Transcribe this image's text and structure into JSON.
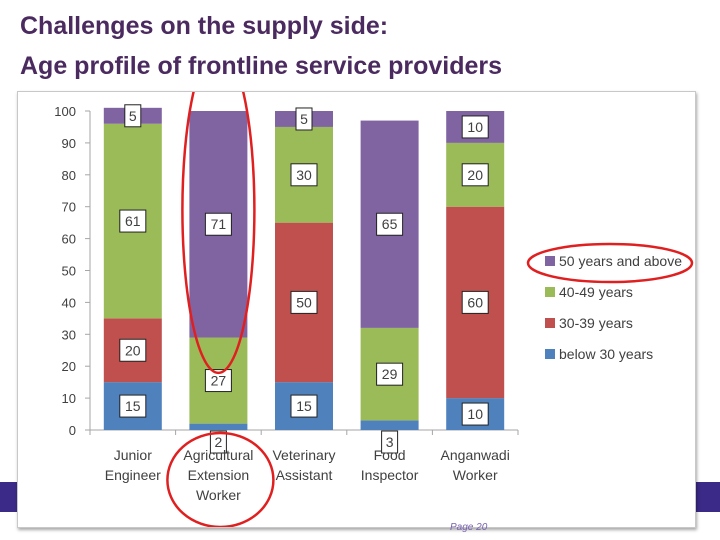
{
  "slide": {
    "title_line1": "Challenges on the supply side:",
    "title_line2": "Age profile of frontline service providers",
    "page_label": "Page 20"
  },
  "colors": {
    "below 30 years": "#4f81bd",
    "30-39 years": "#c0504d",
    "40-49 years": "#9bbb59",
    "50 years and above": "#8064a2",
    "title": "#4b2a5f",
    "highlight_circle": "#e02020"
  },
  "chart_data": {
    "type": "bar",
    "stacked": true,
    "categories": [
      [
        "Junior",
        "Engineer"
      ],
      [
        "Agricultural",
        "Extension",
        "Worker"
      ],
      [
        "Veterinary",
        "Assistant"
      ],
      [
        "Food",
        "Inspector"
      ],
      [
        "Anganwadi",
        "Worker"
      ]
    ],
    "series": [
      {
        "name": "below 30 years",
        "values": [
          15,
          2,
          15,
          3,
          10
        ],
        "color_key": "below 30 years"
      },
      {
        "name": "30-39  years",
        "values": [
          20,
          0,
          50,
          0,
          60
        ],
        "color_key": "30-39 years"
      },
      {
        "name": "40-49 years",
        "values": [
          61,
          27,
          30,
          29,
          20
        ],
        "color_key": "40-49 years"
      },
      {
        "name": "50 years and above",
        "values": [
          5,
          71,
          5,
          65,
          10
        ],
        "color_key": "50 years and above"
      }
    ],
    "data_labels": [
      [
        "15",
        "20",
        "61",
        "5"
      ],
      [
        "2",
        "",
        "27",
        "71"
      ],
      [
        "15",
        "50",
        "30",
        "5"
      ],
      [
        "3",
        "",
        "29",
        "65"
      ],
      [
        "10",
        "60",
        "20",
        "10"
      ]
    ],
    "legend_order": [
      "50 years and above",
      "40-49 years",
      "30-39  years",
      "below 30 years"
    ],
    "legend_placement": "right",
    "ylim": [
      0,
      100
    ],
    "yticks": [
      0,
      10,
      20,
      30,
      40,
      50,
      60,
      70,
      80,
      90,
      100
    ],
    "grid": false,
    "highlights": [
      "Agricultural Extension Worker bar",
      "Agricultural Extension Worker label",
      "legend entry 50 years and above"
    ]
  }
}
